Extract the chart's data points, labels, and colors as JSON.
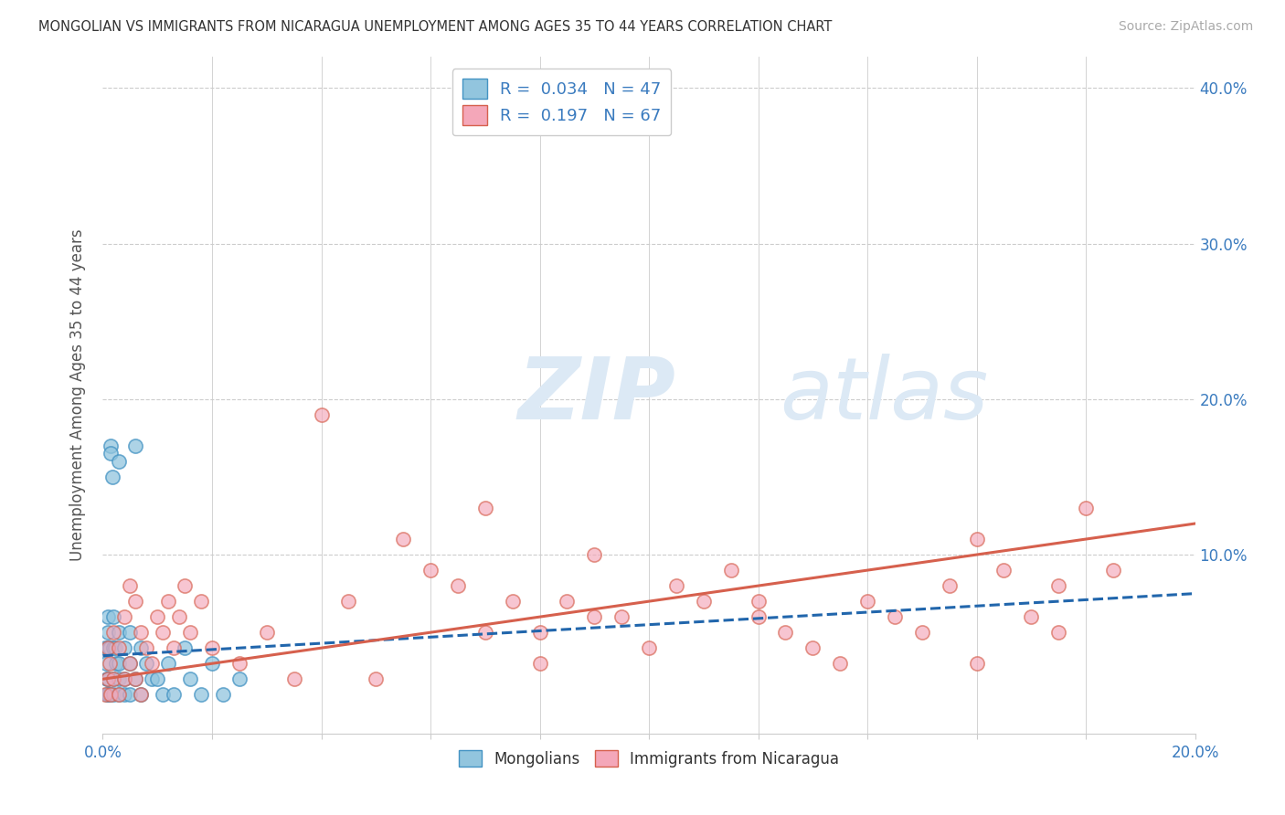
{
  "title": "MONGOLIAN VS IMMIGRANTS FROM NICARAGUA UNEMPLOYMENT AMONG AGES 35 TO 44 YEARS CORRELATION CHART",
  "source": "Source: ZipAtlas.com",
  "ylabel": "Unemployment Among Ages 35 to 44 years",
  "xlim": [
    0.0,
    0.2
  ],
  "ylim": [
    -0.015,
    0.42
  ],
  "blue_color": "#92c5de",
  "blue_edge_color": "#4393c3",
  "pink_color": "#f4a7b9",
  "pink_edge_color": "#d6604d",
  "blue_line_color": "#2166ac",
  "pink_line_color": "#d6604d",
  "text_color": "#3a7bbf",
  "watermark_color": "#dce9f5",
  "blue_scatter_x": [
    0.0005,
    0.0006,
    0.0007,
    0.0008,
    0.001,
    0.001,
    0.001,
    0.001,
    0.001,
    0.0012,
    0.0013,
    0.0015,
    0.0015,
    0.0018,
    0.002,
    0.002,
    0.002,
    0.002,
    0.0022,
    0.0025,
    0.003,
    0.003,
    0.003,
    0.003,
    0.003,
    0.004,
    0.004,
    0.004,
    0.005,
    0.005,
    0.005,
    0.006,
    0.006,
    0.007,
    0.007,
    0.008,
    0.009,
    0.01,
    0.011,
    0.012,
    0.013,
    0.015,
    0.016,
    0.018,
    0.02,
    0.022,
    0.025
  ],
  "blue_scatter_y": [
    0.04,
    0.03,
    0.02,
    0.01,
    0.06,
    0.05,
    0.04,
    0.02,
    0.01,
    0.04,
    0.01,
    0.17,
    0.165,
    0.15,
    0.06,
    0.04,
    0.02,
    0.01,
    0.04,
    0.03,
    0.16,
    0.05,
    0.03,
    0.02,
    0.01,
    0.04,
    0.02,
    0.01,
    0.05,
    0.03,
    0.01,
    0.17,
    0.02,
    0.04,
    0.01,
    0.03,
    0.02,
    0.02,
    0.01,
    0.03,
    0.01,
    0.04,
    0.02,
    0.01,
    0.03,
    0.01,
    0.02
  ],
  "pink_scatter_x": [
    0.0005,
    0.001,
    0.001,
    0.0012,
    0.0015,
    0.002,
    0.002,
    0.003,
    0.003,
    0.004,
    0.004,
    0.005,
    0.005,
    0.006,
    0.006,
    0.007,
    0.007,
    0.008,
    0.009,
    0.01,
    0.011,
    0.012,
    0.013,
    0.014,
    0.015,
    0.016,
    0.018,
    0.02,
    0.025,
    0.03,
    0.035,
    0.04,
    0.045,
    0.05,
    0.055,
    0.06,
    0.065,
    0.07,
    0.075,
    0.08,
    0.085,
    0.09,
    0.095,
    0.1,
    0.105,
    0.11,
    0.115,
    0.12,
    0.125,
    0.13,
    0.135,
    0.14,
    0.145,
    0.15,
    0.155,
    0.16,
    0.165,
    0.17,
    0.175,
    0.18,
    0.185,
    0.175,
    0.16,
    0.12,
    0.09,
    0.08,
    0.07
  ],
  "pink_scatter_y": [
    0.01,
    0.04,
    0.02,
    0.03,
    0.01,
    0.05,
    0.02,
    0.04,
    0.01,
    0.06,
    0.02,
    0.08,
    0.03,
    0.07,
    0.02,
    0.05,
    0.01,
    0.04,
    0.03,
    0.06,
    0.05,
    0.07,
    0.04,
    0.06,
    0.08,
    0.05,
    0.07,
    0.04,
    0.03,
    0.05,
    0.02,
    0.19,
    0.07,
    0.02,
    0.11,
    0.09,
    0.08,
    0.13,
    0.07,
    0.05,
    0.07,
    0.1,
    0.06,
    0.04,
    0.08,
    0.07,
    0.09,
    0.06,
    0.05,
    0.04,
    0.03,
    0.07,
    0.06,
    0.05,
    0.08,
    0.11,
    0.09,
    0.06,
    0.08,
    0.13,
    0.09,
    0.05,
    0.03,
    0.07,
    0.06,
    0.03,
    0.05
  ],
  "blue_trend_start_y": 0.035,
  "blue_trend_end_y": 0.075,
  "pink_trend_start_y": 0.02,
  "pink_trend_end_y": 0.12
}
